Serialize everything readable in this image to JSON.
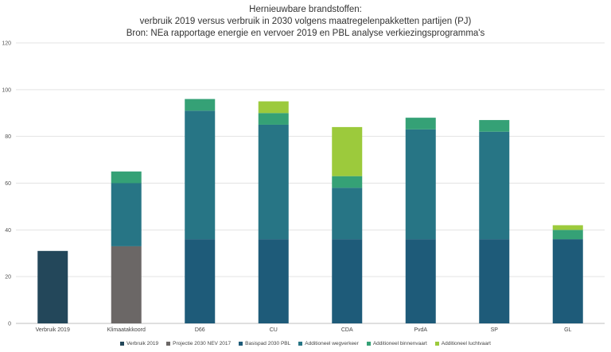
{
  "chart_data": {
    "type": "bar",
    "stacked": true,
    "title_lines": [
      "Hernieuwbare brandstoffen:",
      "verbruik 2019 versus verbruik in 2030 volgens maatregelenpakketten partijen (PJ)",
      "Bron: NEa rapportage energie en vervoer 2019 en PBL analyse verkiezingsprogramma's"
    ],
    "categories": [
      "Verbruik 2019",
      "Klimaatakkoord",
      "D66",
      "CU",
      "CDA",
      "PvdA",
      "SP",
      "GL"
    ],
    "ylim": [
      0,
      120
    ],
    "yticks": [
      "0",
      "20",
      "40",
      "60",
      "80",
      "100",
      "120"
    ],
    "series": [
      {
        "name": "Verbruik 2019",
        "color": "#23475a",
        "values": [
          31,
          0,
          0,
          0,
          0,
          0,
          0,
          0
        ]
      },
      {
        "name": "Projectie 2030 NEV 2017",
        "color": "#6b6766",
        "values": [
          0,
          33,
          0,
          0,
          0,
          0,
          0,
          0
        ]
      },
      {
        "name": "Basispad 2030 PBL",
        "color": "#1e5b79",
        "values": [
          0,
          0,
          36,
          36,
          36,
          36,
          36,
          36
        ]
      },
      {
        "name": "Additioneel wegverkeer",
        "color": "#277585",
        "values": [
          0,
          27,
          55,
          49,
          22,
          47,
          46,
          0
        ]
      },
      {
        "name": "Additioneel binnenvaart",
        "color": "#35a176",
        "values": [
          0,
          5,
          5,
          5,
          5,
          5,
          5,
          4
        ]
      },
      {
        "name": "Additioneel luchtvaart",
        "color": "#9cca3c",
        "values": [
          0,
          0,
          0,
          5,
          21,
          0,
          0,
          2
        ]
      }
    ]
  }
}
